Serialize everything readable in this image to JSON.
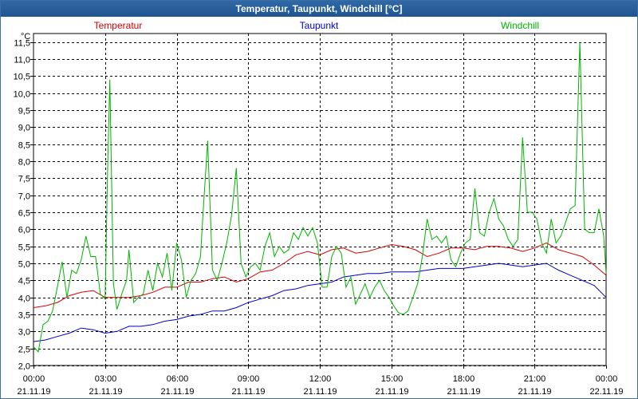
{
  "window": {
    "title": "Temperatur, Taupunkt, Windchill [°C]"
  },
  "chart_data": {
    "type": "line",
    "title": "Temperatur, Taupunkt, Windchill [°C]",
    "ylabel": "°C",
    "ylim": [
      2.0,
      11.75
    ],
    "xlim": [
      0,
      24
    ],
    "grid": true,
    "legend_position": "top",
    "yticks": [
      "2,0",
      "2,5",
      "3,0",
      "3,5",
      "4,0",
      "4,5",
      "5,0",
      "5,5",
      "6,0",
      "6,5",
      "7,0",
      "7,5",
      "8,0",
      "8,5",
      "9,0",
      "9,5",
      "10,0",
      "10,5",
      "11,0",
      "11,5"
    ],
    "yticks_values": [
      2.0,
      2.5,
      3.0,
      3.5,
      4.0,
      4.5,
      5.0,
      5.5,
      6.0,
      6.5,
      7.0,
      7.5,
      8.0,
      8.5,
      9.0,
      9.5,
      10.0,
      10.5,
      11.0,
      11.5
    ],
    "xticks": [
      {
        "time": "00:00",
        "date": "21.11.19",
        "x": 0
      },
      {
        "time": "03:00",
        "date": "21.11.19",
        "x": 3
      },
      {
        "time": "06:00",
        "date": "21.11.19",
        "x": 6
      },
      {
        "time": "09:00",
        "date": "21.11.19",
        "x": 9
      },
      {
        "time": "12:00",
        "date": "21.11.19",
        "x": 12
      },
      {
        "time": "15:00",
        "date": "21.11.19",
        "x": 15
      },
      {
        "time": "18:00",
        "date": "21.11.19",
        "x": 18
      },
      {
        "time": "21:00",
        "date": "21.11.19",
        "x": 21
      },
      {
        "time": "00:00",
        "date": "22.11.19",
        "x": 24
      }
    ],
    "series": [
      {
        "name": "Temperatur",
        "color": "#d40000",
        "points": [
          [
            0,
            3.7
          ],
          [
            0.5,
            3.75
          ],
          [
            1,
            3.85
          ],
          [
            1.5,
            4.05
          ],
          [
            2,
            4.15
          ],
          [
            2.5,
            4.2
          ],
          [
            3,
            4.0
          ],
          [
            3.5,
            4.0
          ],
          [
            4,
            4.0
          ],
          [
            4.5,
            4.05
          ],
          [
            5,
            4.15
          ],
          [
            5.5,
            4.3
          ],
          [
            6,
            4.3
          ],
          [
            6.5,
            4.45
          ],
          [
            7,
            4.45
          ],
          [
            7.5,
            4.55
          ],
          [
            8,
            4.6
          ],
          [
            8.5,
            4.45
          ],
          [
            9,
            4.55
          ],
          [
            9.5,
            4.75
          ],
          [
            10,
            4.8
          ],
          [
            10.5,
            5.0
          ],
          [
            11,
            5.25
          ],
          [
            11.5,
            5.35
          ],
          [
            12,
            5.25
          ],
          [
            12.5,
            5.4
          ],
          [
            13,
            5.45
          ],
          [
            13.5,
            5.3
          ],
          [
            14,
            5.35
          ],
          [
            14.5,
            5.45
          ],
          [
            15,
            5.55
          ],
          [
            15.5,
            5.5
          ],
          [
            16,
            5.4
          ],
          [
            16.5,
            5.2
          ],
          [
            17,
            5.3
          ],
          [
            17.5,
            5.45
          ],
          [
            18,
            5.45
          ],
          [
            18.5,
            5.4
          ],
          [
            19,
            5.5
          ],
          [
            19.5,
            5.5
          ],
          [
            20,
            5.45
          ],
          [
            20.5,
            5.35
          ],
          [
            21,
            5.45
          ],
          [
            21.5,
            5.6
          ],
          [
            22,
            5.4
          ],
          [
            22.5,
            5.3
          ],
          [
            23,
            5.2
          ],
          [
            23.5,
            4.95
          ],
          [
            24,
            4.65
          ]
        ]
      },
      {
        "name": "Taupunkt",
        "color": "#0000c8",
        "points": [
          [
            0,
            2.7
          ],
          [
            0.5,
            2.75
          ],
          [
            1,
            2.85
          ],
          [
            1.5,
            2.95
          ],
          [
            2,
            3.1
          ],
          [
            2.5,
            3.05
          ],
          [
            3,
            2.95
          ],
          [
            3.5,
            3.0
          ],
          [
            4,
            3.15
          ],
          [
            4.5,
            3.15
          ],
          [
            5,
            3.2
          ],
          [
            5.5,
            3.3
          ],
          [
            6,
            3.35
          ],
          [
            6.5,
            3.45
          ],
          [
            7,
            3.5
          ],
          [
            7.5,
            3.6
          ],
          [
            8,
            3.6
          ],
          [
            8.5,
            3.7
          ],
          [
            9,
            3.85
          ],
          [
            9.5,
            3.95
          ],
          [
            10,
            4.05
          ],
          [
            10.5,
            4.2
          ],
          [
            11,
            4.25
          ],
          [
            11.5,
            4.35
          ],
          [
            12,
            4.4
          ],
          [
            12.5,
            4.45
          ],
          [
            13,
            4.6
          ],
          [
            13.5,
            4.65
          ],
          [
            14,
            4.7
          ],
          [
            14.5,
            4.7
          ],
          [
            15,
            4.75
          ],
          [
            15.5,
            4.75
          ],
          [
            16,
            4.75
          ],
          [
            16.5,
            4.8
          ],
          [
            17,
            4.85
          ],
          [
            17.5,
            4.85
          ],
          [
            18,
            4.85
          ],
          [
            18.5,
            4.9
          ],
          [
            19,
            4.95
          ],
          [
            19.5,
            5.0
          ],
          [
            20,
            4.95
          ],
          [
            20.5,
            4.9
          ],
          [
            21,
            4.95
          ],
          [
            21.5,
            5.0
          ],
          [
            22,
            4.8
          ],
          [
            22.5,
            4.65
          ],
          [
            23,
            4.5
          ],
          [
            23.5,
            4.35
          ],
          [
            24,
            4.0
          ]
        ]
      },
      {
        "name": "Windchill",
        "color": "#00b400",
        "points": [
          [
            0,
            2.55
          ],
          [
            0.2,
            2.4
          ],
          [
            0.4,
            3.2
          ],
          [
            0.6,
            3.3
          ],
          [
            0.8,
            3.6
          ],
          [
            1,
            4.3
          ],
          [
            1.2,
            5.05
          ],
          [
            1.4,
            4.0
          ],
          [
            1.6,
            4.8
          ],
          [
            1.8,
            4.7
          ],
          [
            2,
            5.1
          ],
          [
            2.2,
            5.8
          ],
          [
            2.4,
            5.2
          ],
          [
            2.6,
            5.2
          ],
          [
            2.8,
            4.1
          ],
          [
            3.0,
            3.95
          ],
          [
            3.1,
            7.5
          ],
          [
            3.2,
            10.4
          ],
          [
            3.35,
            4.4
          ],
          [
            3.5,
            3.65
          ],
          [
            3.7,
            4.1
          ],
          [
            3.9,
            4.5
          ],
          [
            4.0,
            5.4
          ],
          [
            4.2,
            3.85
          ],
          [
            4.4,
            4.0
          ],
          [
            4.6,
            4.1
          ],
          [
            4.8,
            4.8
          ],
          [
            5.0,
            4.2
          ],
          [
            5.2,
            5.0
          ],
          [
            5.4,
            4.6
          ],
          [
            5.6,
            5.3
          ],
          [
            5.8,
            4.2
          ],
          [
            6.0,
            5.6
          ],
          [
            6.2,
            5.1
          ],
          [
            6.4,
            4.0
          ],
          [
            6.6,
            4.5
          ],
          [
            6.8,
            4.7
          ],
          [
            7.0,
            5.2
          ],
          [
            7.1,
            6.4
          ],
          [
            7.3,
            8.6
          ],
          [
            7.5,
            4.8
          ],
          [
            7.7,
            4.5
          ],
          [
            7.9,
            5.0
          ],
          [
            8.1,
            5.6
          ],
          [
            8.3,
            6.4
          ],
          [
            8.5,
            7.8
          ],
          [
            8.7,
            5.0
          ],
          [
            8.9,
            4.6
          ],
          [
            9.1,
            4.9
          ],
          [
            9.3,
            5.0
          ],
          [
            9.5,
            4.8
          ],
          [
            9.7,
            5.5
          ],
          [
            9.9,
            5.9
          ],
          [
            10.1,
            5.2
          ],
          [
            10.3,
            5.5
          ],
          [
            10.5,
            5.3
          ],
          [
            10.7,
            5.4
          ],
          [
            10.9,
            5.9
          ],
          [
            11.1,
            5.7
          ],
          [
            11.3,
            6.05
          ],
          [
            11.5,
            5.8
          ],
          [
            11.7,
            6.05
          ],
          [
            11.9,
            5.6
          ],
          [
            12.1,
            4.3
          ],
          [
            12.3,
            4.3
          ],
          [
            12.5,
            5.2
          ],
          [
            12.7,
            5.5
          ],
          [
            12.9,
            5.3
          ],
          [
            13.1,
            4.3
          ],
          [
            13.3,
            4.6
          ],
          [
            13.5,
            3.8
          ],
          [
            13.7,
            4.1
          ],
          [
            13.9,
            4.4
          ],
          [
            14.1,
            4.0
          ],
          [
            14.3,
            4.3
          ],
          [
            14.5,
            4.5
          ],
          [
            14.7,
            4.2
          ],
          [
            14.9,
            4.0
          ],
          [
            15.1,
            3.75
          ],
          [
            15.3,
            3.55
          ],
          [
            15.5,
            3.5
          ],
          [
            15.7,
            3.6
          ],
          [
            15.9,
            4.0
          ],
          [
            16.1,
            4.4
          ],
          [
            16.3,
            5.2
          ],
          [
            16.5,
            6.3
          ],
          [
            16.7,
            5.7
          ],
          [
            16.9,
            5.8
          ],
          [
            17.1,
            5.6
          ],
          [
            17.3,
            5.8
          ],
          [
            17.5,
            5.1
          ],
          [
            17.7,
            4.9
          ],
          [
            17.9,
            5.3
          ],
          [
            18.1,
            5.6
          ],
          [
            18.3,
            5.7
          ],
          [
            18.5,
            7.2
          ],
          [
            18.7,
            5.9
          ],
          [
            18.9,
            5.8
          ],
          [
            19.1,
            6.5
          ],
          [
            19.3,
            6.9
          ],
          [
            19.5,
            6.3
          ],
          [
            19.7,
            6.1
          ],
          [
            19.9,
            5.7
          ],
          [
            20.1,
            5.5
          ],
          [
            20.3,
            5.7
          ],
          [
            20.5,
            8.7
          ],
          [
            20.7,
            6.5
          ],
          [
            20.9,
            6.5
          ],
          [
            21.1,
            6.3
          ],
          [
            21.3,
            5.6
          ],
          [
            21.5,
            5.3
          ],
          [
            21.7,
            6.3
          ],
          [
            21.9,
            5.6
          ],
          [
            22.1,
            5.8
          ],
          [
            22.3,
            6.2
          ],
          [
            22.5,
            6.6
          ],
          [
            22.7,
            6.7
          ],
          [
            22.9,
            11.5
          ],
          [
            23.1,
            6.0
          ],
          [
            23.3,
            5.9
          ],
          [
            23.5,
            5.9
          ],
          [
            23.7,
            6.6
          ],
          [
            23.9,
            5.8
          ],
          [
            24.0,
            4.7
          ]
        ]
      }
    ]
  }
}
